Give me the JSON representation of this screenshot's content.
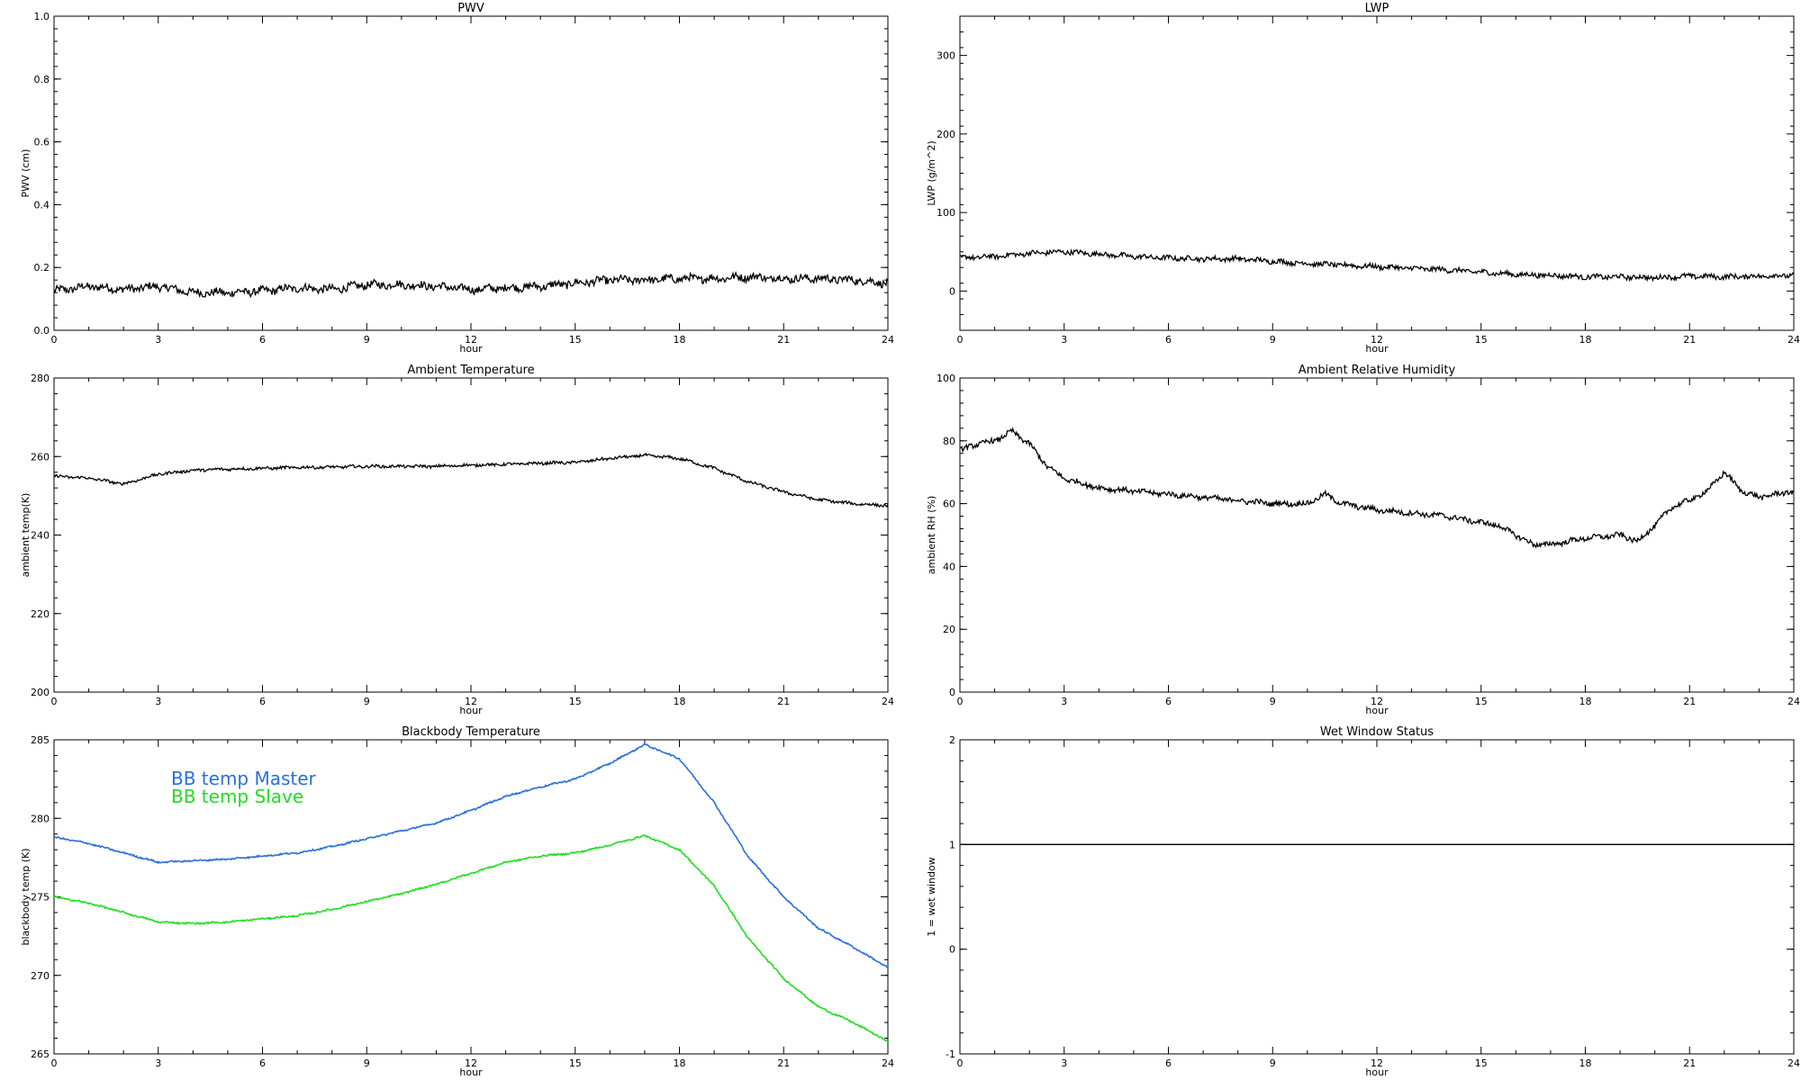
{
  "colors": {
    "master": "#2a6fdb",
    "slave": "#22dd22",
    "axes": "#000000",
    "series": "#000000"
  },
  "chart_data": [
    {
      "type": "line",
      "title": "PWV",
      "xlabel": "hour",
      "ylabel": "PWV (cm)",
      "xlim": [
        0,
        24
      ],
      "ylim": [
        0.0,
        1.0
      ],
      "xticks": [
        "0",
        "3",
        "6",
        "9",
        "12",
        "15",
        "18",
        "21",
        "24"
      ],
      "yticks": [
        "0.0",
        "0.2",
        "0.4",
        "0.6",
        "0.8",
        "1.0"
      ],
      "grid": false,
      "series": [
        {
          "x": [
            0,
            1,
            2,
            3,
            4,
            5,
            6,
            7,
            8,
            9,
            10,
            11,
            12,
            13,
            14,
            15,
            16,
            17,
            18,
            19,
            20,
            21,
            22,
            23,
            24
          ],
          "y": [
            0.125,
            0.14,
            0.13,
            0.14,
            0.12,
            0.12,
            0.125,
            0.135,
            0.13,
            0.145,
            0.145,
            0.14,
            0.13,
            0.135,
            0.14,
            0.15,
            0.16,
            0.16,
            0.165,
            0.165,
            0.17,
            0.165,
            0.165,
            0.16,
            0.15
          ],
          "noise": 0.012
        }
      ]
    },
    {
      "type": "line",
      "title": "LWP",
      "xlabel": "hour",
      "ylabel": "LWP (g/m^2)",
      "xlim": [
        0,
        24
      ],
      "ylim": [
        -50,
        350
      ],
      "xticks": [
        "0",
        "3",
        "6",
        "9",
        "12",
        "15",
        "18",
        "21",
        "24"
      ],
      "yticks": [
        "0",
        "100",
        "200",
        "300"
      ],
      "grid": false,
      "series": [
        {
          "x": [
            0,
            1,
            2,
            3,
            4,
            5,
            6,
            7,
            8,
            9,
            10,
            11,
            12,
            13,
            14,
            15,
            16,
            17,
            18,
            19,
            20,
            21,
            22,
            23,
            24
          ],
          "y": [
            42,
            44,
            48,
            50,
            47,
            44,
            42,
            41,
            41,
            38,
            35,
            33,
            31,
            29,
            27,
            24,
            21,
            20,
            18,
            18,
            17,
            19,
            18,
            19,
            20
          ],
          "noise": 3
        }
      ]
    },
    {
      "type": "line",
      "title": "Ambient Temperature",
      "xlabel": "hour",
      "ylabel": "ambient temp(K)",
      "xlim": [
        0,
        24
      ],
      "ylim": [
        200,
        280
      ],
      "xticks": [
        "0",
        "3",
        "6",
        "9",
        "12",
        "15",
        "18",
        "21",
        "24"
      ],
      "yticks": [
        "200",
        "220",
        "240",
        "260",
        "280"
      ],
      "grid": false,
      "series": [
        {
          "x": [
            0,
            1,
            2,
            3,
            4,
            5,
            6,
            7,
            8,
            9,
            10,
            11,
            12,
            13,
            14,
            15,
            16,
            17,
            18,
            19,
            20,
            21,
            22,
            23,
            24
          ],
          "y": [
            255,
            254.5,
            253,
            255.5,
            256.5,
            256.8,
            257,
            257.2,
            257.3,
            257.5,
            257.5,
            257.5,
            257.8,
            258,
            258.3,
            258.5,
            259.5,
            260.3,
            259.5,
            257,
            253.5,
            251,
            249,
            248,
            247.5
          ],
          "noise": 0.35
        }
      ]
    },
    {
      "type": "line",
      "title": "Ambient Relative Humidity",
      "xlabel": "hour",
      "ylabel": "ambient RH (%)",
      "xlim": [
        0,
        24
      ],
      "ylim": [
        0,
        100
      ],
      "xticks": [
        "0",
        "3",
        "6",
        "9",
        "12",
        "15",
        "18",
        "21",
        "24"
      ],
      "yticks": [
        "0",
        "20",
        "40",
        "60",
        "80",
        "100"
      ],
      "grid": false,
      "series": [
        {
          "x": [
            0,
            0.5,
            1,
            1.5,
            2,
            2.5,
            3,
            4,
            5,
            6,
            7,
            8,
            9,
            10,
            10.5,
            11,
            12,
            13,
            14,
            15,
            15.5,
            16,
            16.5,
            17,
            18,
            19,
            19.5,
            20,
            20.5,
            21,
            21.5,
            22,
            22.5,
            23,
            24
          ],
          "y": [
            77,
            79,
            80,
            83,
            79,
            72,
            68,
            65,
            64,
            63,
            62,
            61,
            60,
            60,
            63,
            60,
            58,
            57,
            56,
            54,
            53,
            50,
            47,
            47,
            49,
            50,
            48,
            53,
            59,
            61,
            64,
            70,
            64,
            62,
            64
          ],
          "noise": 0.8
        }
      ]
    },
    {
      "type": "line",
      "title": "Blackbody Temperature",
      "xlabel": "hour",
      "ylabel": "blackbody temp (K)",
      "xlim": [
        0,
        24
      ],
      "ylim": [
        265,
        285
      ],
      "xticks": [
        "0",
        "3",
        "6",
        "9",
        "12",
        "15",
        "18",
        "21",
        "24"
      ],
      "yticks": [
        "265",
        "270",
        "275",
        "280",
        "285"
      ],
      "grid": false,
      "legend": "upper-left",
      "series": [
        {
          "name": "BB temp Master",
          "color_key": "master",
          "x": [
            0,
            1,
            2,
            3,
            4,
            5,
            6,
            7,
            8,
            9,
            10,
            11,
            12,
            13,
            14,
            15,
            16,
            17,
            18,
            19,
            20,
            21,
            22,
            23,
            24
          ],
          "y": [
            278.8,
            278.4,
            277.8,
            277.2,
            277.3,
            277.4,
            277.6,
            277.8,
            278.2,
            278.7,
            279.2,
            279.7,
            280.5,
            281.4,
            282.0,
            282.5,
            283.5,
            284.7,
            283.8,
            281.0,
            277.5,
            275.0,
            273.0,
            271.8,
            270.5
          ],
          "noise": 0.05
        },
        {
          "name": "BB temp Slave",
          "color_key": "slave",
          "x": [
            0,
            1,
            2,
            3,
            4,
            5,
            6,
            7,
            8,
            9,
            10,
            11,
            12,
            13,
            14,
            15,
            16,
            17,
            18,
            19,
            20,
            21,
            22,
            23,
            24
          ],
          "y": [
            275.0,
            274.6,
            274.0,
            273.4,
            273.3,
            273.4,
            273.6,
            273.8,
            274.2,
            274.7,
            275.2,
            275.8,
            276.5,
            277.2,
            277.6,
            277.8,
            278.3,
            278.9,
            278.0,
            275.7,
            272.3,
            269.8,
            268.0,
            267.0,
            265.8
          ],
          "noise": 0.05
        }
      ]
    },
    {
      "type": "line",
      "title": "Wet Window Status",
      "xlabel": "hour",
      "ylabel": "1 = wet window",
      "xlim": [
        0,
        24
      ],
      "ylim": [
        -1,
        2
      ],
      "xticks": [
        "0",
        "3",
        "6",
        "9",
        "12",
        "15",
        "18",
        "21",
        "24"
      ],
      "yticks": [
        "-1",
        "0",
        "1",
        "2"
      ],
      "grid": false,
      "series": [
        {
          "x": [
            0,
            24
          ],
          "y": [
            1,
            1
          ],
          "noise": 0
        }
      ]
    }
  ]
}
